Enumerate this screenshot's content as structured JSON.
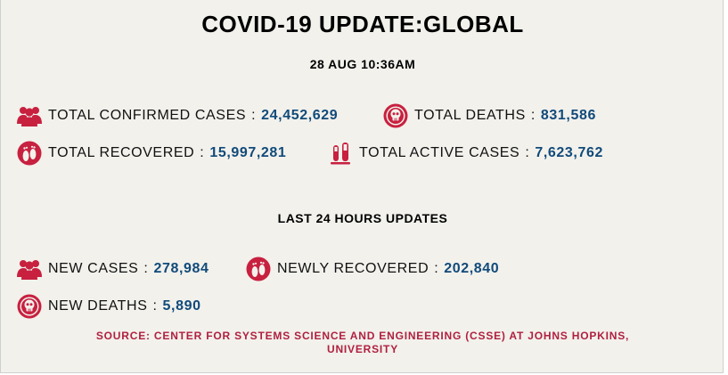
{
  "header": {
    "title": "COVID-19 UPDATE:GLOBAL",
    "timestamp": "28 AUG 10:36AM"
  },
  "totals": {
    "confirmed": {
      "label": "TOTAL CONFIRMED CASES",
      "value": "24,452,629",
      "icon": "people-group-icon"
    },
    "deaths": {
      "label": "TOTAL DEATHS",
      "value": "831,586",
      "icon": "skull-icon"
    },
    "recovered": {
      "label": "TOTAL RECOVERED",
      "value": "15,997,281",
      "icon": "footprint-icon"
    },
    "active": {
      "label": "TOTAL ACTIVE CASES",
      "value": "7,623,762",
      "icon": "test-tube-icon"
    }
  },
  "last24": {
    "heading": "LAST 24 HOURS UPDATES",
    "new_cases": {
      "label": "NEW CASES",
      "value": "278,984",
      "icon": "people-group-icon"
    },
    "newly_recovered": {
      "label": "NEWLY RECOVERED",
      "value": "202,840",
      "icon": "footprint-icon"
    },
    "new_deaths": {
      "label": "NEW DEATHS",
      "value": "5,890",
      "icon": "skull-icon"
    }
  },
  "separator": ":",
  "source": {
    "line1": "SOURCE: CENTER FOR SYSTEMS SCIENCE AND ENGINEERING (CSSE) AT JOHNS HOPKINS,",
    "line2": "UNIVERSITY"
  },
  "colors": {
    "background": "#f2f1ec",
    "value": "#114a7a",
    "icon": "#c8203f",
    "source": "#b0203f"
  }
}
